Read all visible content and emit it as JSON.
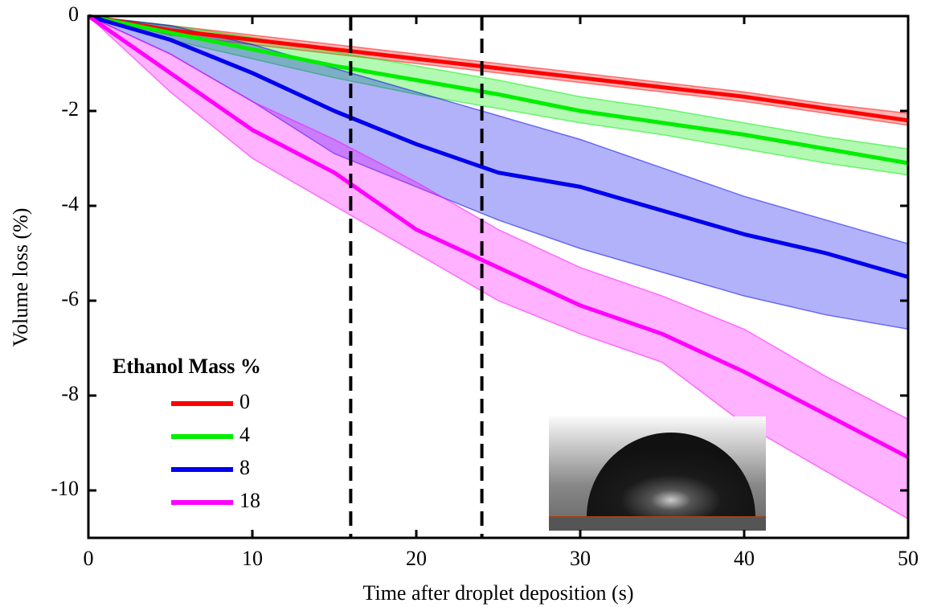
{
  "chart_data": {
    "type": "line",
    "xlabel": "Time after droplet deposition (s)",
    "ylabel": "Volume loss (%)",
    "legend_title": "Ethanol Mass %",
    "legend_position": "lower left",
    "x": [
      0,
      5,
      10,
      15,
      20,
      25,
      30,
      35,
      40,
      45,
      50
    ],
    "series": [
      {
        "name": "0",
        "color": "#ff0000",
        "values": [
          0,
          -0.3,
          -0.5,
          -0.7,
          -0.9,
          -1.1,
          -1.3,
          -1.5,
          -1.7,
          -1.95,
          -2.2
        ],
        "upper": [
          0,
          -0.2,
          -0.4,
          -0.6,
          -0.8,
          -1.0,
          -1.2,
          -1.4,
          -1.6,
          -1.85,
          -2.05
        ],
        "lower": [
          0,
          -0.4,
          -0.6,
          -0.8,
          -1.0,
          -1.2,
          -1.4,
          -1.6,
          -1.8,
          -2.05,
          -2.3
        ]
      },
      {
        "name": "4",
        "color": "#00ee00",
        "values": [
          0,
          -0.35,
          -0.7,
          -1.05,
          -1.35,
          -1.65,
          -2.0,
          -2.25,
          -2.5,
          -2.8,
          -3.1
        ],
        "upper": [
          0,
          -0.2,
          -0.45,
          -0.75,
          -1.05,
          -1.35,
          -1.7,
          -1.95,
          -2.25,
          -2.55,
          -2.8
        ],
        "lower": [
          0,
          -0.5,
          -0.9,
          -1.3,
          -1.65,
          -1.95,
          -2.25,
          -2.5,
          -2.8,
          -3.1,
          -3.35
        ]
      },
      {
        "name": "8",
        "color": "#0000ee",
        "values": [
          0,
          -0.5,
          -1.2,
          -2.0,
          -2.7,
          -3.3,
          -3.6,
          -4.1,
          -4.6,
          -5.0,
          -5.5
        ],
        "upper": [
          0,
          -0.2,
          -0.6,
          -1.1,
          -1.6,
          -2.1,
          -2.6,
          -3.2,
          -3.8,
          -4.3,
          -4.8
        ],
        "lower": [
          0,
          -0.8,
          -1.8,
          -2.9,
          -3.6,
          -4.3,
          -4.9,
          -5.4,
          -5.9,
          -6.3,
          -6.6
        ]
      },
      {
        "name": "18",
        "color": "#ff00ff",
        "values": [
          0,
          -1.2,
          -2.4,
          -3.3,
          -4.5,
          -5.3,
          -6.1,
          -6.7,
          -7.5,
          -8.4,
          -9.3
        ],
        "upper": [
          0,
          -0.8,
          -1.8,
          -2.6,
          -3.5,
          -4.5,
          -5.3,
          -5.9,
          -6.6,
          -7.6,
          -8.5
        ],
        "lower": [
          0,
          -1.6,
          -3.0,
          -4.0,
          -5.0,
          -6.0,
          -6.7,
          -7.3,
          -8.6,
          -9.6,
          -10.6
        ]
      }
    ],
    "vlines": [
      16,
      24
    ],
    "xlim": [
      0,
      50
    ],
    "xticks": [
      0,
      10,
      20,
      30,
      40,
      50
    ],
    "ylim": [
      -11,
      0
    ],
    "yticks": [
      0,
      -2,
      -4,
      -6,
      -8,
      -10
    ]
  }
}
